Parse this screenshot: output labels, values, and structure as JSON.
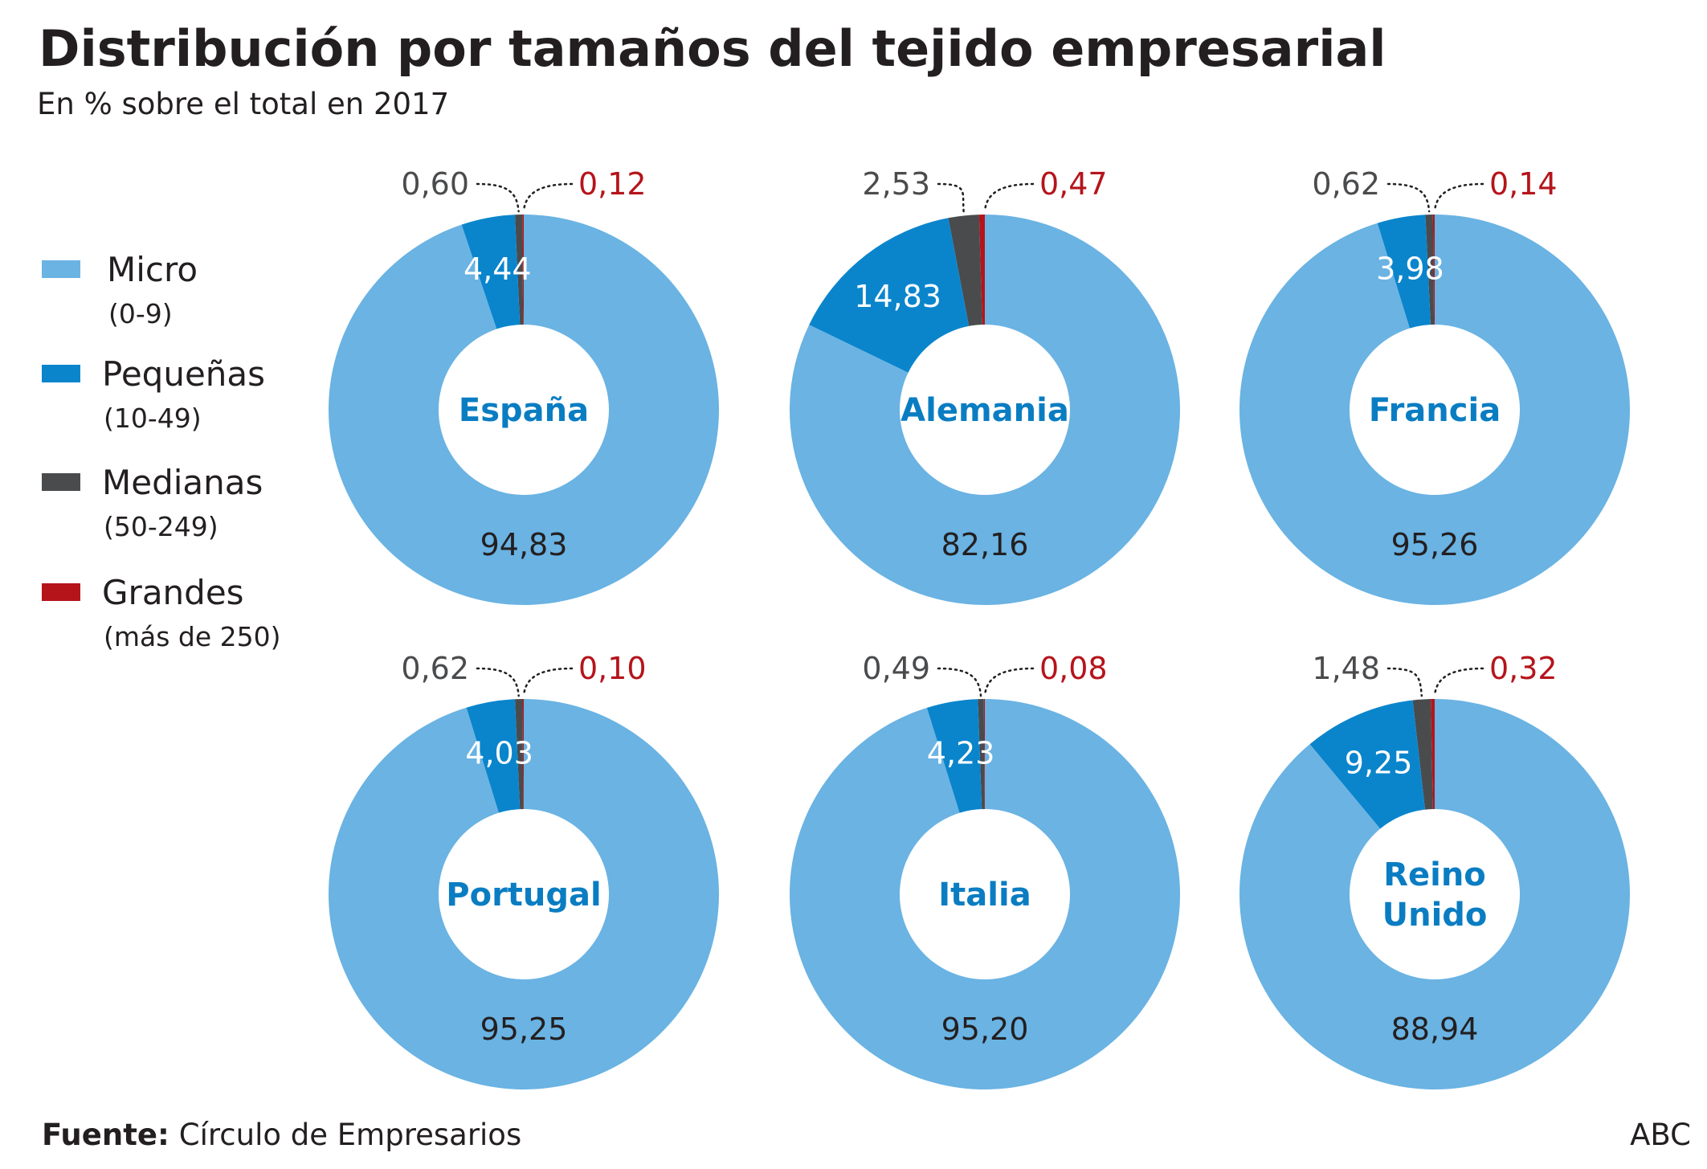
{
  "header": {
    "title": "Distribución por tamaños del tejido empresarial",
    "subtitle": "En % sobre el total en 2017"
  },
  "legend": [
    {
      "label": "Micro",
      "range": "(0-9)",
      "color": "#6ab3e3"
    },
    {
      "label": "Pequeñas",
      "range": "(10-49)",
      "color": "#0a85cc"
    },
    {
      "label": "Medianas",
      "range": "(50-249)",
      "color": "#4a4b4d"
    },
    {
      "label": "Grandes",
      "range": "(más de 250)",
      "color": "#b5141b"
    }
  ],
  "chart_data": {
    "type": "pie",
    "categories": [
      "Micro",
      "Pequeñas",
      "Medianas",
      "Grandes"
    ],
    "colors": [
      "#6ab3e3",
      "#0a85cc",
      "#4a4b4d",
      "#b5141b"
    ],
    "series": [
      {
        "name": "España",
        "center_lines": [
          "España"
        ],
        "values": [
          94.83,
          4.44,
          0.6,
          0.12
        ],
        "labels": [
          "94,83",
          "4,44",
          "0,60",
          "0,12"
        ]
      },
      {
        "name": "Alemania",
        "center_lines": [
          "Alemania"
        ],
        "values": [
          82.16,
          14.83,
          2.53,
          0.47
        ],
        "labels": [
          "82,16",
          "14,83",
          "2,53",
          "0,47"
        ]
      },
      {
        "name": "Francia",
        "center_lines": [
          "Francia"
        ],
        "values": [
          95.26,
          3.98,
          0.62,
          0.14
        ],
        "labels": [
          "95,26",
          "3,98",
          "0,62",
          "0,14"
        ]
      },
      {
        "name": "Portugal",
        "center_lines": [
          "Portugal"
        ],
        "values": [
          95.25,
          4.03,
          0.62,
          0.1
        ],
        "labels": [
          "95,25",
          "4,03",
          "0,62",
          "0,10"
        ]
      },
      {
        "name": "Italia",
        "center_lines": [
          "Italia"
        ],
        "values": [
          95.2,
          4.23,
          0.49,
          0.08
        ],
        "labels": [
          "95,20",
          "4,23",
          "0,49",
          "0,08"
        ]
      },
      {
        "name": "Reino Unido",
        "center_lines": [
          "Reino",
          "Unido"
        ],
        "values": [
          88.94,
          9.25,
          1.48,
          0.32
        ],
        "labels": [
          "88,94",
          "9,25",
          "1,48",
          "0,32"
        ]
      }
    ]
  },
  "footer": {
    "source_label": "Fuente:",
    "source_text": "Círculo de Empresarios",
    "brand": "ABC"
  }
}
